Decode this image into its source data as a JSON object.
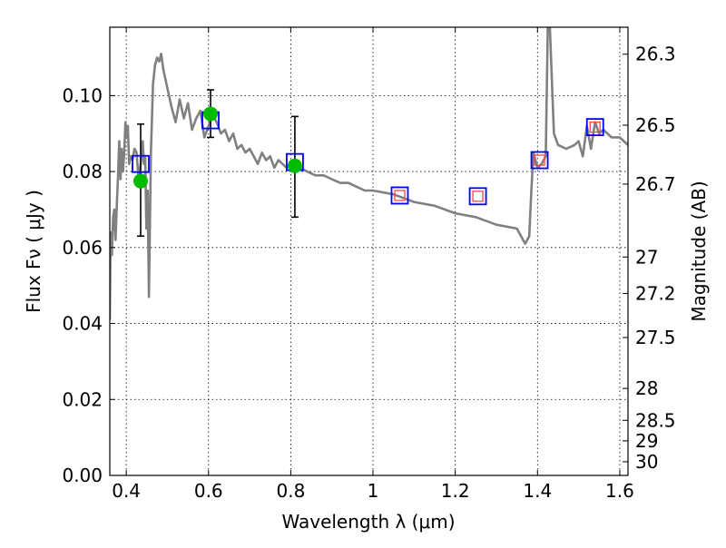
{
  "chart_data": {
    "type": "line",
    "xlabel": "Wavelength  λ (μm)",
    "ylabel": "Flux  Fν  ( μJy )",
    "ylabel_right": "Magnitude (AB)",
    "xlim": [
      0.36,
      1.62
    ],
    "ylim": [
      0.0,
      0.118
    ],
    "grid": true,
    "x_ticks": [
      0.4,
      0.6,
      0.8,
      1.0,
      1.2,
      1.4,
      1.6
    ],
    "x_tick_labels": [
      "0.4",
      "0.6",
      "0.8",
      "1",
      "1.2",
      "1.4",
      "1.6"
    ],
    "y_ticks": [
      0.0,
      0.02,
      0.04,
      0.06,
      0.08,
      0.1
    ],
    "y_tick_labels": [
      "0.00",
      "0.02",
      "0.04",
      "0.06",
      "0.08",
      "0.10"
    ],
    "right_ticks": [
      {
        "label": "26.3",
        "flux": 0.1109
      },
      {
        "label": "26.5",
        "flux": 0.0922
      },
      {
        "label": "26.7",
        "flux": 0.0767
      },
      {
        "label": "27",
        "flux": 0.0575
      },
      {
        "label": "27.2",
        "flux": 0.0479
      },
      {
        "label": "27.5",
        "flux": 0.0363
      },
      {
        "label": "28",
        "flux": 0.0229
      },
      {
        "label": "28.5",
        "flux": 0.0145
      },
      {
        "label": "29",
        "flux": 0.0091
      },
      {
        "label": "30",
        "flux": 0.0036
      }
    ],
    "colors": {
      "model": "#808080",
      "observed": "#00bb00",
      "errorbar": "#000000",
      "synthetic_box": "#0000ff",
      "inner_box": "#ff4444",
      "grid": "#000000"
    },
    "series": [
      {
        "kind": "model_spectrum",
        "x": [
          0.36,
          0.362,
          0.365,
          0.368,
          0.371,
          0.374,
          0.377,
          0.38,
          0.383,
          0.386,
          0.389,
          0.392,
          0.395,
          0.398,
          0.401,
          0.404,
          0.407,
          0.41,
          0.415,
          0.42,
          0.425,
          0.43,
          0.435,
          0.44,
          0.443,
          0.446,
          0.449,
          0.452,
          0.455,
          0.46,
          0.465,
          0.47,
          0.475,
          0.48,
          0.485,
          0.49,
          0.5,
          0.51,
          0.52,
          0.53,
          0.54,
          0.55,
          0.56,
          0.57,
          0.58,
          0.59,
          0.6,
          0.61,
          0.62,
          0.63,
          0.64,
          0.65,
          0.66,
          0.67,
          0.68,
          0.69,
          0.7,
          0.71,
          0.72,
          0.73,
          0.74,
          0.75,
          0.76,
          0.77,
          0.78,
          0.79,
          0.8,
          0.82,
          0.84,
          0.86,
          0.88,
          0.9,
          0.92,
          0.94,
          0.96,
          0.98,
          1.0,
          1.05,
          1.1,
          1.15,
          1.2,
          1.25,
          1.3,
          1.35,
          1.37,
          1.38,
          1.385,
          1.39,
          1.4,
          1.41,
          1.42,
          1.425,
          1.43,
          1.44,
          1.45,
          1.47,
          1.49,
          1.5,
          1.51,
          1.52,
          1.53,
          1.54,
          1.55,
          1.56,
          1.58,
          1.6,
          1.62
        ],
        "y": [
          0.041,
          0.064,
          0.058,
          0.068,
          0.07,
          0.062,
          0.071,
          0.079,
          0.088,
          0.078,
          0.086,
          0.08,
          0.085,
          0.093,
          0.089,
          0.092,
          0.082,
          0.084,
          0.083,
          0.086,
          0.085,
          0.078,
          0.082,
          0.088,
          0.082,
          0.084,
          0.065,
          0.075,
          0.047,
          0.085,
          0.103,
          0.108,
          0.11,
          0.109,
          0.111,
          0.107,
          0.102,
          0.097,
          0.093,
          0.099,
          0.094,
          0.098,
          0.091,
          0.094,
          0.096,
          0.089,
          0.092,
          0.095,
          0.093,
          0.09,
          0.091,
          0.088,
          0.09,
          0.086,
          0.087,
          0.085,
          0.086,
          0.084,
          0.082,
          0.085,
          0.083,
          0.084,
          0.081,
          0.083,
          0.082,
          0.081,
          0.082,
          0.081,
          0.08,
          0.079,
          0.079,
          0.078,
          0.077,
          0.077,
          0.076,
          0.075,
          0.075,
          0.074,
          0.072,
          0.071,
          0.069,
          0.068,
          0.066,
          0.065,
          0.061,
          0.063,
          0.075,
          0.085,
          0.081,
          0.082,
          0.084,
          0.118,
          0.118,
          0.09,
          0.087,
          0.086,
          0.087,
          0.088,
          0.084,
          0.092,
          0.086,
          0.093,
          0.09,
          0.091,
          0.089,
          0.089,
          0.087
        ]
      },
      {
        "kind": "observed_points",
        "x": [
          0.435,
          0.605,
          0.81
        ],
        "y": [
          0.0775,
          0.0952,
          0.0815
        ],
        "err_low": [
          0.063,
          0.089,
          0.068
        ],
        "err_high": [
          0.0925,
          0.1015,
          0.0945
        ]
      },
      {
        "kind": "synthetic_photometry_boxes",
        "x": [
          0.435,
          0.605,
          0.81,
          1.065,
          1.255,
          1.405,
          1.54
        ],
        "y": [
          0.082,
          0.0935,
          0.0825,
          0.0737,
          0.0735,
          0.083,
          0.0917
        ],
        "inner": [
          false,
          false,
          false,
          true,
          true,
          true,
          true
        ]
      }
    ]
  }
}
